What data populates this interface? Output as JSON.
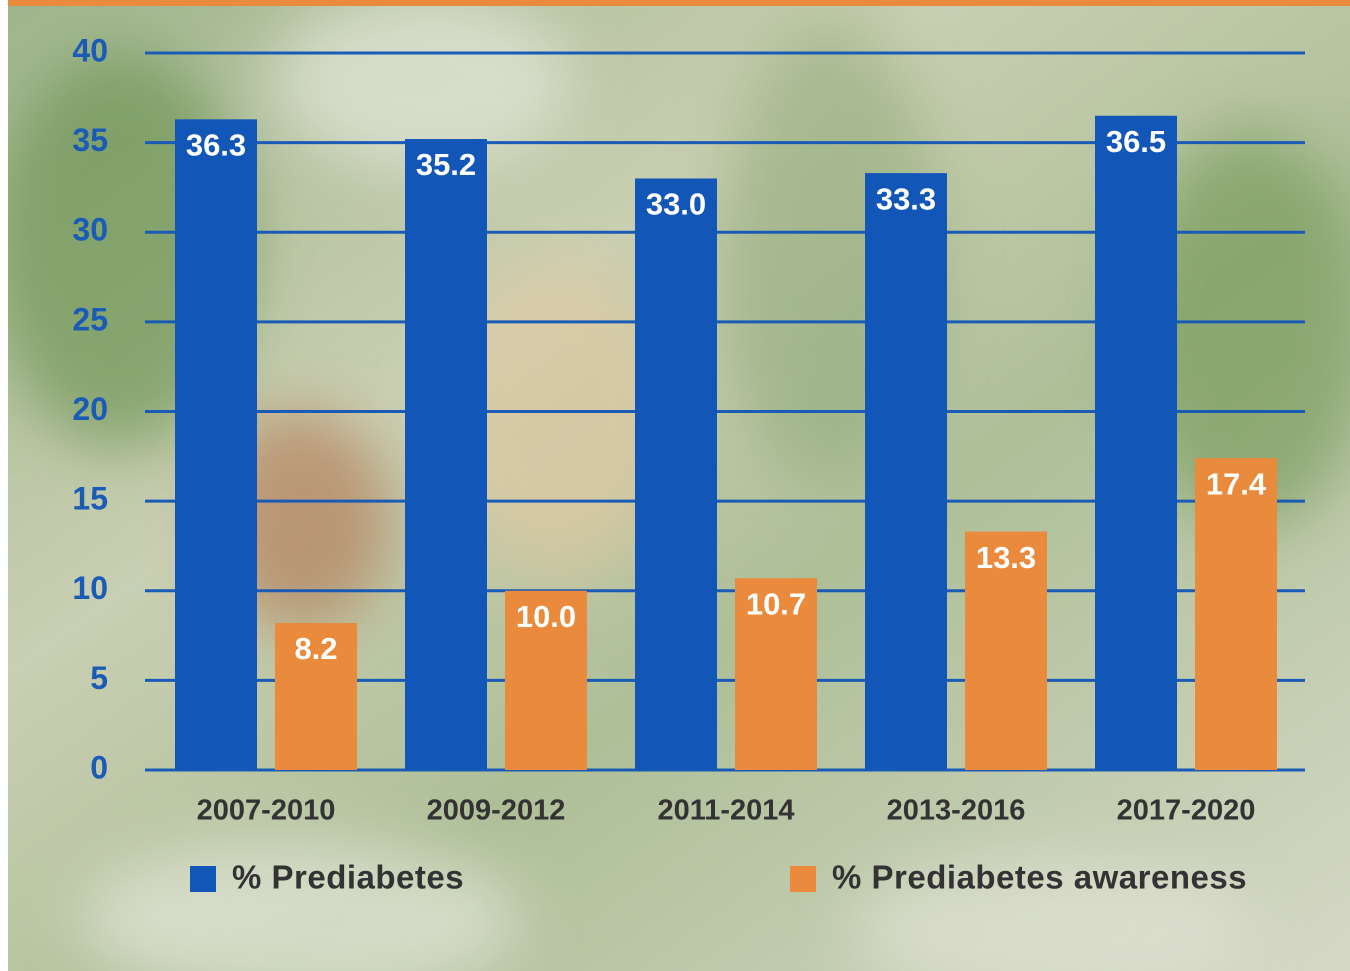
{
  "chart_data": {
    "type": "bar",
    "categories": [
      "2007-2010",
      "2009-2012",
      "2011-2014",
      "2013-2016",
      "2017-2020"
    ],
    "series": [
      {
        "name": "% Prediabetes",
        "color": "#1257b8",
        "values": [
          36.3,
          35.2,
          33.0,
          33.3,
          36.5
        ],
        "value_labels": [
          "36.3",
          "35.2",
          "33.0",
          "33.3",
          "36.5"
        ]
      },
      {
        "name": "% Prediabetes awareness",
        "color": "#e98a3c",
        "values": [
          8.2,
          10.0,
          10.7,
          13.3,
          17.4
        ],
        "value_labels": [
          "8.2",
          "10.0",
          "10.7",
          "13.3",
          "17.4"
        ]
      }
    ],
    "ylim": [
      0,
      40
    ],
    "yticks": [
      0,
      5,
      10,
      15,
      20,
      25,
      30,
      35,
      40
    ],
    "grid": true,
    "legend": "bottom"
  }
}
